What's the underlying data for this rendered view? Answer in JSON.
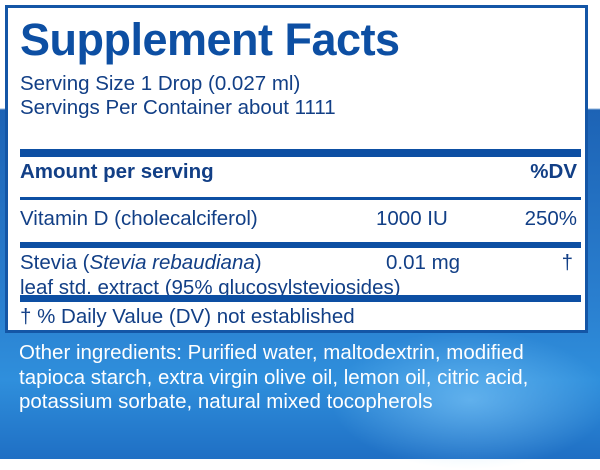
{
  "title": "Supplement Facts",
  "serving_size": "Serving Size 1 Drop (0.027 ml)",
  "servings_per_container": "Servings Per Container about 1111",
  "table": {
    "header_amount": "Amount per serving",
    "header_dv": "%DV",
    "rows": [
      {
        "name": "Vitamin D (cholecalciferol)",
        "amount": "1000 IU",
        "dv": "250%"
      },
      {
        "name_prefix": "Stevia (",
        "name_italic": "Stevia rebaudiana",
        "name_suffix": ")",
        "amount": "0.01 mg",
        "dv": "†",
        "detail": "leaf std. extract (95% glucosylsteviosides)"
      }
    ]
  },
  "footnote": "† % Daily Value (DV) not established",
  "other_ingredients": "Other ingredients: Purified water, maltodextrin, modified tapioca starch, extra virgin olive oil, lemon oil, citric acid, potassium sorbate, natural mixed tocopherols",
  "colors": {
    "brand_blue": "#0d4fa3",
    "text_blue": "#123f86"
  }
}
